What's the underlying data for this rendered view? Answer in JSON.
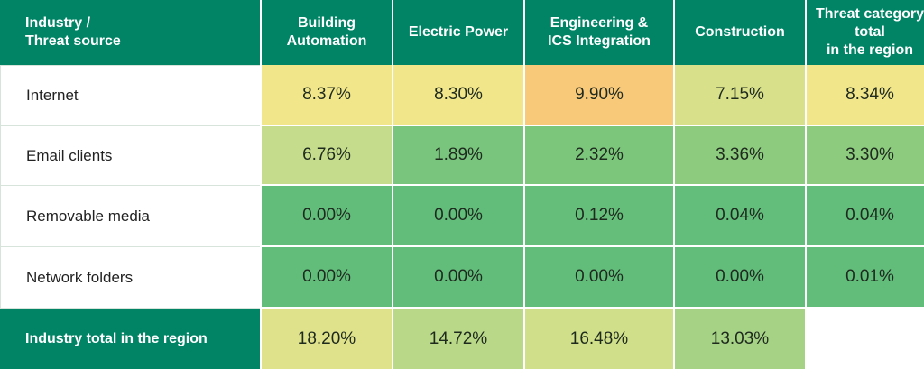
{
  "chart_data": {
    "type": "table",
    "header": {
      "corner": "Industry /\nThreat source",
      "columns": [
        "Building\nAutomation",
        "Electric Power",
        "Engineering &\nICS Integration",
        "Construction",
        "Threat category\ntotal\nin the region"
      ]
    },
    "rows": [
      {
        "label": "Internet",
        "values": [
          "8.37%",
          "8.30%",
          "9.90%",
          "7.15%",
          "8.34%"
        ],
        "colors": [
          "#f1e68a",
          "#f1e68a",
          "#f9c97a",
          "#d8e08a",
          "#f1e68a"
        ]
      },
      {
        "label": "Email clients",
        "values": [
          "6.76%",
          "1.89%",
          "2.32%",
          "3.36%",
          "3.30%"
        ],
        "colors": [
          "#c5dc8c",
          "#79c57d",
          "#7cc67c",
          "#8dcb7e",
          "#8dcb7e"
        ]
      },
      {
        "label": "Removable media",
        "values": [
          "0.00%",
          "0.00%",
          "0.12%",
          "0.04%",
          "0.04%"
        ],
        "colors": [
          "#62bd7b",
          "#62bd7b",
          "#66be7b",
          "#63bd7b",
          "#63bd7b"
        ]
      },
      {
        "label": "Network folders",
        "values": [
          "0.00%",
          "0.00%",
          "0.00%",
          "0.00%",
          "0.01%"
        ],
        "colors": [
          "#62bd7b",
          "#62bd7b",
          "#62bd7b",
          "#62bd7b",
          "#62bd7b"
        ]
      }
    ],
    "footer": {
      "label": "Industry total in the region",
      "values": [
        "18.20%",
        "14.72%",
        "16.48%",
        "13.03%"
      ],
      "colors": [
        "#dfe28b",
        "#b9d988",
        "#cfdf8a",
        "#a5d285"
      ]
    }
  }
}
